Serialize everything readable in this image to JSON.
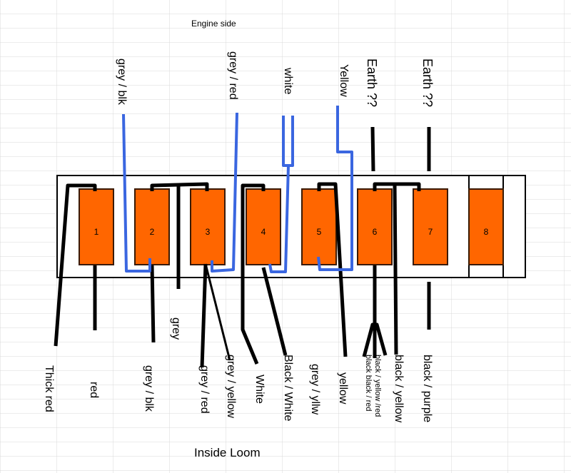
{
  "title": "Engine side",
  "footer": "Inside Loom",
  "fuses": [
    "1",
    "2",
    "3",
    "4",
    "5",
    "6",
    "7",
    "8"
  ],
  "top_labels": [
    "grey / blk",
    "grey / red",
    "white",
    "Yellow",
    "Earth ??",
    "Earth ??"
  ],
  "bottom_labels": [
    "Thick red",
    "red",
    "grey",
    "grey / blk",
    "grey / red",
    "grey / yellow",
    "White",
    "Black / White",
    "grey / yllw",
    "yellow",
    "black  black / red",
    "black / yellow /red",
    "black / yellow",
    "black / purple"
  ]
}
